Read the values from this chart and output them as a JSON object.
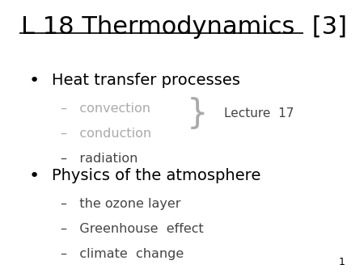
{
  "title_underlined": "L 18 Thermodynamics",
  "title_bracket": " [3]",
  "background_color": "#ffffff",
  "text_color_black": "#000000",
  "text_color_gray": "#aaaaaa",
  "text_color_dark": "#444444",
  "bullet1": "Heat transfer processes",
  "sub1a": "convection",
  "sub1b": "conduction",
  "sub1c": "radiation",
  "lecture_note": "Lecture  17",
  "bullet2": "Physics of the atmosphere",
  "sub2a": "the ozone layer",
  "sub2b": "Greenhouse  effect",
  "sub2c": "climate  change",
  "page_num": "1",
  "title_fontsize": 22,
  "bullet_fontsize": 14,
  "sub_fontsize": 11.5,
  "lecture_fontsize": 11
}
